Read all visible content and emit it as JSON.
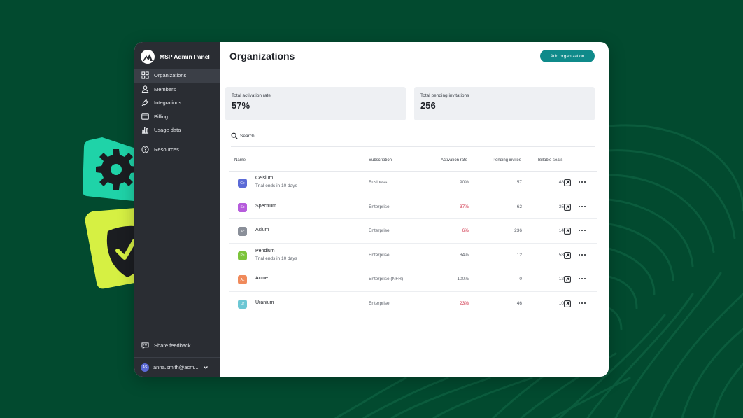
{
  "colors": {
    "background": "#024a2f",
    "sidebar": "#2a2d33",
    "accent": "#0f8a8a",
    "negative": "#d0334a",
    "gear_badge": "#1fd3a8",
    "shield_badge": "#d6f043"
  },
  "sidebar": {
    "brand": "MSP Admin Panel",
    "items": [
      {
        "label": "Organizations",
        "icon": "grid-icon",
        "active": true
      },
      {
        "label": "Members",
        "icon": "person-icon"
      },
      {
        "label": "Integrations",
        "icon": "plug-icon"
      },
      {
        "label": "Billing",
        "icon": "card-icon"
      },
      {
        "label": "Usage data",
        "icon": "bar-chart-icon"
      },
      {
        "label": "Resources",
        "icon": "help-circle-icon"
      }
    ],
    "feedback": "Share feedback",
    "user": {
      "initials": "AS",
      "email": "anna.smith@acm..."
    }
  },
  "main": {
    "title": "Organizations",
    "add_button": "Add organization",
    "stats": [
      {
        "label": "Total activation rate",
        "value": "57%"
      },
      {
        "label": "Total pending invitations",
        "value": "256"
      }
    ],
    "search_placeholder": "Search",
    "columns": {
      "name": "Name",
      "subscription": "Subscription",
      "activation": "Activation rate",
      "pending": "Pending invites",
      "seats": "Billable seats"
    },
    "rows": [
      {
        "abbr": "Ce",
        "color": "#5b6ad6",
        "name": "Celsium",
        "sub": "Trial ends in 10 days",
        "subscription": "Business",
        "activation": "90%",
        "pending": "57",
        "seats": "48",
        "low": false
      },
      {
        "abbr": "Sp",
        "color": "#b65cdc",
        "name": "Spectrum",
        "sub": "",
        "subscription": "Enterprise",
        "activation": "37%",
        "pending": "62",
        "seats": "35",
        "low": true
      },
      {
        "abbr": "Ac",
        "color": "#8a8f99",
        "name": "Acium",
        "sub": "",
        "subscription": "Enterprise",
        "activation": "6%",
        "pending": "236",
        "seats": "14",
        "low": true
      },
      {
        "abbr": "Pe",
        "color": "#7cc43a",
        "name": "Pendium",
        "sub": "Trial ends in 10 days",
        "subscription": "Enterprise",
        "activation": "84%",
        "pending": "12",
        "seats": "58",
        "low": false
      },
      {
        "abbr": "Ac",
        "color": "#f08a5b",
        "name": "Acme",
        "sub": "",
        "subscription": "Enterprise (NFR)",
        "activation": "100%",
        "pending": "0",
        "seats": "12",
        "low": false
      },
      {
        "abbr": "Ur",
        "color": "#6cc7d4",
        "name": "Uranium",
        "sub": "",
        "subscription": "Enterprise",
        "activation": "23%",
        "pending": "46",
        "seats": "10",
        "low": true
      }
    ]
  }
}
